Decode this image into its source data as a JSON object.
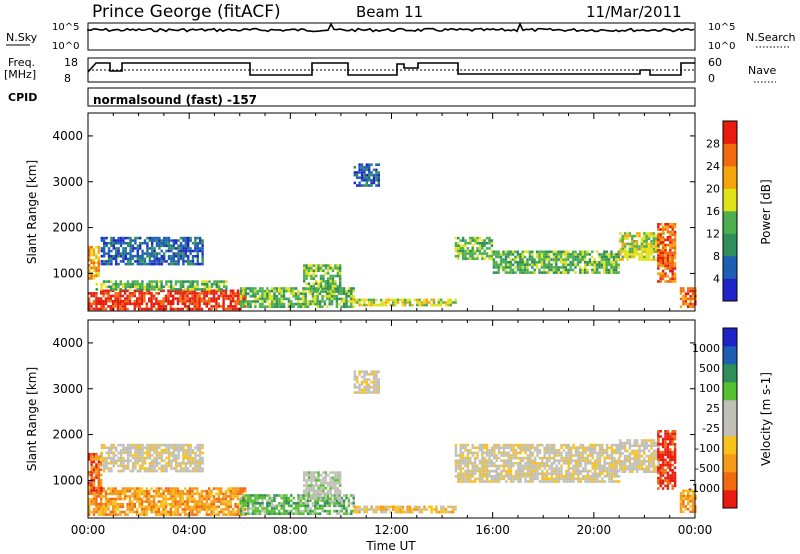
{
  "header": {
    "station": "Prince George (fitACF)",
    "beam": "Beam 11",
    "date": "11/Mar/2011"
  },
  "panels": {
    "nsky": {
      "label": "N.Sky",
      "tick_top": "10^5",
      "tick_bottom": "10^0",
      "right_label": "N.Search",
      "right_tick_top": "10^5",
      "right_tick_bottom": "10^0"
    },
    "freq": {
      "label_line1": "Freq.",
      "label_line2": "[MHz]",
      "tick_top": "18",
      "tick_bottom": "8",
      "right_label": "Nave",
      "right_tick_top": "60",
      "right_tick_bottom": "0"
    },
    "cpid": {
      "label": "CPID",
      "value": "normalsound (fast) -157"
    }
  },
  "colors": {
    "power_scale": [
      "#1f24c8",
      "#1e5fb4",
      "#2f8f5a",
      "#4caf50",
      "#e2e21a",
      "#f4a50c",
      "#f06a10",
      "#e81b0e"
    ],
    "velocity_scale": [
      "#e81b0e",
      "#f06a10",
      "#f49a18",
      "#f8c21a",
      "#c0c0b8",
      "#c0c0b8",
      "#55c030",
      "#2f8f5a",
      "#1e5fb4",
      "#1f24c8"
    ]
  },
  "chart_data": [
    {
      "type": "heatmap",
      "name": "power",
      "xlabel": "",
      "ylabel": "Slant Range [km]",
      "xlim": [
        0,
        24
      ],
      "ylim": [
        180,
        4500
      ],
      "y_ticks": [
        1000,
        2000,
        3000,
        4000
      ],
      "colorbar_label": "Power [dB]",
      "colorbar_ticks": [
        "28",
        "24",
        "20",
        "16",
        "12",
        "8",
        "4"
      ],
      "regions": [
        {
          "t0": 0.0,
          "t1": 6.2,
          "r0": 250,
          "r1": 650,
          "level": 7
        },
        {
          "t0": 0.3,
          "t1": 5.5,
          "r0": 650,
          "r1": 850,
          "level": 3
        },
        {
          "t0": 0.0,
          "t1": 0.4,
          "r0": 900,
          "r1": 1600,
          "level": 5
        },
        {
          "t0": 0.5,
          "t1": 4.5,
          "r0": 1200,
          "r1": 1800,
          "level": 1
        },
        {
          "t0": 6.0,
          "t1": 10.5,
          "r0": 300,
          "r1": 700,
          "level": 3
        },
        {
          "t0": 8.5,
          "t1": 10.0,
          "r0": 600,
          "r1": 1200,
          "level": 3
        },
        {
          "t0": 10.5,
          "t1": 14.5,
          "r0": 280,
          "r1": 450,
          "level": 4
        },
        {
          "t0": 10.5,
          "t1": 11.5,
          "r0": 2900,
          "r1": 3400,
          "level": 1
        },
        {
          "t0": 14.5,
          "t1": 16.0,
          "r0": 1300,
          "r1": 1800,
          "level": 3
        },
        {
          "t0": 16.0,
          "t1": 21.0,
          "r0": 1000,
          "r1": 1500,
          "level": 3
        },
        {
          "t0": 21.0,
          "t1": 22.8,
          "r0": 1300,
          "r1": 1900,
          "level": 4
        },
        {
          "t0": 22.5,
          "t1": 23.2,
          "r0": 800,
          "r1": 2100,
          "level": 6
        },
        {
          "t0": 23.4,
          "t1": 24.0,
          "r0": 300,
          "r1": 700,
          "level": 6
        }
      ]
    },
    {
      "type": "heatmap",
      "name": "velocity",
      "xlabel": "Time UT",
      "ylabel": "Slant Range [km]",
      "xlim": [
        0,
        24
      ],
      "ylim": [
        180,
        4500
      ],
      "x_ticks": [
        "00:00",
        "04:00",
        "08:00",
        "12:00",
        "16:00",
        "20:00",
        "00:00"
      ],
      "y_ticks": [
        1000,
        2000,
        3000,
        4000
      ],
      "colorbar_label": "Velocity [m s-1]",
      "colorbar_ticks": [
        "1000",
        "500",
        "100",
        "25",
        "-25",
        "-100",
        "-500",
        "-1000"
      ],
      "regions": [
        {
          "t0": 0.0,
          "t1": 6.2,
          "r0": 250,
          "r1": 850,
          "level": 2
        },
        {
          "t0": 0.0,
          "t1": 0.5,
          "r0": 700,
          "r1": 1600,
          "level": 1
        },
        {
          "t0": 0.5,
          "t1": 4.5,
          "r0": 1200,
          "r1": 1800,
          "level": 4
        },
        {
          "t0": 6.0,
          "t1": 10.5,
          "r0": 300,
          "r1": 700,
          "level": 6
        },
        {
          "t0": 8.5,
          "t1": 10.0,
          "r0": 600,
          "r1": 1200,
          "level": 5
        },
        {
          "t0": 10.5,
          "t1": 14.5,
          "r0": 280,
          "r1": 450,
          "level": 3
        },
        {
          "t0": 10.5,
          "t1": 11.5,
          "r0": 2900,
          "r1": 3400,
          "level": 4
        },
        {
          "t0": 14.5,
          "t1": 21.0,
          "r0": 1000,
          "r1": 1800,
          "level": 4
        },
        {
          "t0": 21.0,
          "t1": 22.6,
          "r0": 1200,
          "r1": 1900,
          "level": 4
        },
        {
          "t0": 22.5,
          "t1": 23.2,
          "r0": 800,
          "r1": 2100,
          "level": 0
        },
        {
          "t0": 23.4,
          "t1": 24.0,
          "r0": 300,
          "r1": 800,
          "level": 2
        }
      ]
    }
  ]
}
